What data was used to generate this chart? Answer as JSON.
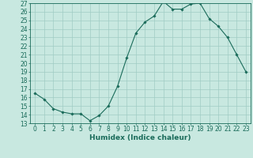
{
  "x": [
    0,
    1,
    2,
    3,
    4,
    5,
    6,
    7,
    8,
    9,
    10,
    11,
    12,
    13,
    14,
    15,
    16,
    17,
    18,
    19,
    20,
    21,
    22,
    23
  ],
  "y": [
    16.5,
    15.8,
    14.7,
    14.3,
    14.1,
    14.1,
    13.3,
    13.9,
    15.0,
    17.3,
    20.6,
    23.5,
    24.8,
    25.5,
    27.2,
    26.3,
    26.3,
    26.9,
    27.0,
    25.2,
    24.3,
    23.0,
    21.0,
    19.0
  ],
  "line_color": "#1a6b5a",
  "marker": "D",
  "marker_size": 1.8,
  "bg_color": "#c8e8e0",
  "grid_color": "#a0ccc4",
  "xlabel": "Humidex (Indice chaleur)",
  "ylim": [
    13,
    27
  ],
  "xlim": [
    -0.5,
    23.5
  ],
  "yticks": [
    13,
    14,
    15,
    16,
    17,
    18,
    19,
    20,
    21,
    22,
    23,
    24,
    25,
    26,
    27
  ],
  "xticks": [
    0,
    1,
    2,
    3,
    4,
    5,
    6,
    7,
    8,
    9,
    10,
    11,
    12,
    13,
    14,
    15,
    16,
    17,
    18,
    19,
    20,
    21,
    22,
    23
  ],
  "label_fontsize": 6.5,
  "tick_fontsize": 5.5
}
